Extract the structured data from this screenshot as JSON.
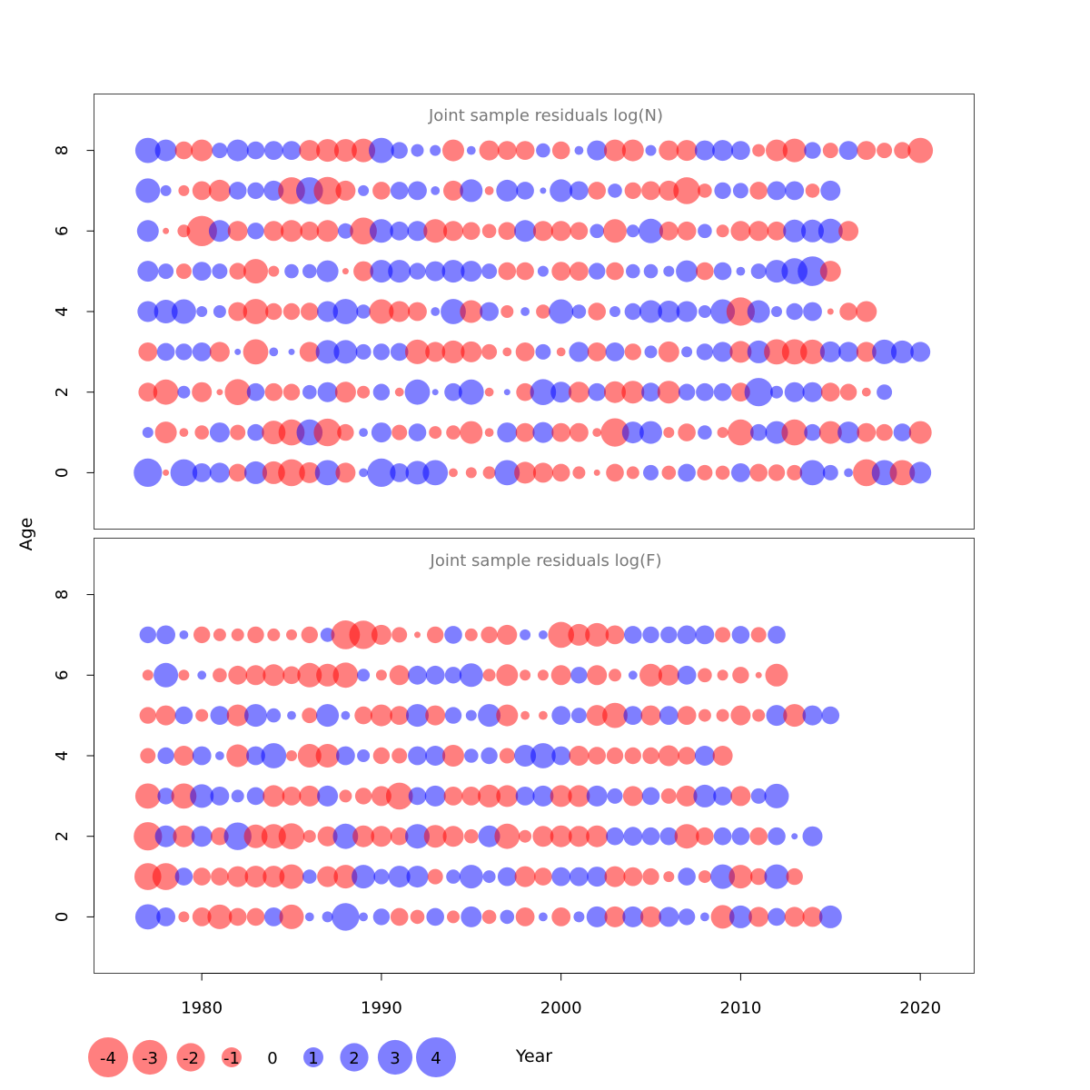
{
  "chart_data": {
    "type": "scatter",
    "style": "bubble residual plot",
    "xlabel": "Year",
    "ylabel": "Age",
    "xlim": [
      1974,
      2023
    ],
    "ylim": [
      -1.4,
      9.4
    ],
    "xticks": [
      1980,
      1990,
      2000,
      2010,
      2020
    ],
    "yticks": [
      0,
      2,
      4,
      6,
      8
    ],
    "years": [
      1977,
      1978,
      1979,
      1980,
      1981,
      1982,
      1983,
      1984,
      1985,
      1986,
      1987,
      1988,
      1989,
      1990,
      1991,
      1992,
      1993,
      1994,
      1995,
      1996,
      1997,
      1998,
      1999,
      2000,
      2001,
      2002,
      2003,
      2004,
      2005,
      2006,
      2007,
      2008,
      2009,
      2010,
      2011,
      2012,
      2013,
      2014,
      2015,
      2016,
      2017,
      2018,
      2019,
      2020
    ],
    "colors": {
      "negative": "#ff0000",
      "positive": "#0000ff"
    },
    "max_abs_residual": 4,
    "panels": [
      {
        "title": "Joint sample residuals log(N)",
        "ages": [
          0,
          1,
          2,
          3,
          4,
          5,
          6,
          7,
          8
        ],
        "residuals": [
          [
            2.0,
            -0.1,
            1.8,
            0.9,
            1.0,
            -0.8,
            1.3,
            -1.3,
            -1.8,
            -1.1,
            1.6,
            -1.0,
            0.2,
            2.0,
            0.9,
            1.4,
            1.6,
            -0.2,
            -0.3,
            -0.4,
            1.6,
            -1.2,
            -1.0,
            -0.8,
            -0.4,
            -0.1,
            -0.8,
            -0.4,
            0.6,
            -0.5,
            0.8,
            -0.6,
            -0.5,
            0.9,
            -0.8,
            -0.7,
            -0.6,
            1.6,
            0.6,
            0.2,
            -1.8,
            1.6,
            -1.6,
            1.2
          ],
          [
            0.3,
            -1.2,
            -0.2,
            -0.5,
            1.0,
            -0.6,
            0.7,
            -1.4,
            -1.7,
            1.7,
            -1.9,
            -0.7,
            0.2,
            1.0,
            -0.6,
            0.8,
            -0.4,
            -0.5,
            -1.3,
            -0.2,
            1.0,
            -0.9,
            1.1,
            -0.9,
            -0.9,
            -0.2,
            -2.0,
            1.2,
            1.3,
            -0.3,
            -0.8,
            0.5,
            -0.3,
            -1.7,
            0.7,
            1.3,
            -1.7,
            0.7,
            -1.3,
            1.2,
            -0.9,
            -0.7,
            0.8,
            -1.3
          ],
          [
            -0.9,
            -1.6,
            0.4,
            -1.0,
            -0.1,
            -1.7,
            0.8,
            -0.8,
            -0.7,
            0.5,
            1.0,
            -1.1,
            -0.4,
            0.7,
            -0.2,
            1.6,
            0.1,
            0.8,
            1.6,
            -0.2,
            0.1,
            -0.8,
            1.7,
            1.1,
            -1.1,
            0.8,
            -1.2,
            -1.3,
            0.9,
            -1.3,
            0.7,
            0.8,
            0.8,
            -0.9,
            2.0,
            0.4,
            1.0,
            1.0,
            -0.9,
            -0.7,
            -0.2,
            0.6
          ],
          [
            -0.9,
            0.8,
            0.7,
            0.9,
            -1.0,
            0.1,
            -1.6,
            0.2,
            0.1,
            -1.0,
            1.4,
            1.4,
            0.6,
            0.7,
            0.8,
            -1.5,
            -1.0,
            -1.3,
            -1.1,
            -0.6,
            -0.2,
            -0.9,
            0.6,
            -0.2,
            1.0,
            -0.9,
            0.9,
            -0.7,
            0.4,
            -1.1,
            0.3,
            0.7,
            1.0,
            -1.2,
            1.3,
            -1.6,
            -1.6,
            -1.5,
            1.1,
            1.0,
            -1.0,
            1.5,
            1.3,
            1.0,
            -0.2
          ],
          [
            1.1,
            1.4,
            1.5,
            0.3,
            0.4,
            -0.9,
            -1.6,
            -0.7,
            -0.7,
            -0.8,
            1.1,
            1.6,
            0.5,
            -1.5,
            -1.1,
            -0.9,
            0.2,
            1.6,
            -1.3,
            0.9,
            -0.4,
            0.2,
            -0.5,
            1.5,
            0.5,
            -0.8,
            0.3,
            0.7,
            1.3,
            1.2,
            1.1,
            0.4,
            1.5,
            -2.0,
            1.3,
            0.3,
            0.7,
            0.9,
            -0.1,
            -0.8,
            -1.1
          ],
          [
            1.1,
            0.6,
            -0.6,
            0.9,
            0.6,
            -0.7,
            -1.5,
            -0.3,
            0.5,
            0.5,
            1.2,
            -0.1,
            -1.0,
            1.3,
            1.3,
            0.7,
            1.0,
            1.3,
            1.1,
            0.6,
            -0.8,
            -0.8,
            0.3,
            -0.9,
            -0.9,
            0.7,
            -0.8,
            0.5,
            0.5,
            0.3,
            1.2,
            -0.8,
            0.8,
            0.2,
            0.6,
            1.3,
            1.7,
            2.2,
            -1.1
          ],
          [
            1.2,
            -0.1,
            -0.4,
            -2.3,
            1.2,
            -1.0,
            0.7,
            -1.0,
            -1.2,
            -0.9,
            -1.2,
            0.6,
            -1.8,
            1.4,
            0.9,
            1.0,
            -1.4,
            -1.0,
            -0.8,
            -0.5,
            -0.8,
            1.2,
            -1.0,
            -1.0,
            -0.8,
            0.5,
            -1.4,
            0.4,
            1.5,
            -0.9,
            -0.9,
            0.5,
            -0.4,
            -1.0,
            -1.0,
            -0.9,
            1.3,
            1.3,
            1.5,
            -1.0
          ],
          [
            1.5,
            0.3,
            -0.3,
            -0.9,
            -1.2,
            0.8,
            0.7,
            1.0,
            -1.8,
            1.8,
            -1.9,
            -1.0,
            0.3,
            -0.8,
            0.8,
            0.9,
            0.2,
            -1.0,
            1.3,
            -0.2,
            1.2,
            0.8,
            0.1,
            1.3,
            0.9,
            -0.8,
            0.5,
            -0.7,
            -0.9,
            -1.0,
            -1.8,
            -0.5,
            0.7,
            0.6,
            -0.8,
            0.9,
            0.9,
            -0.5,
            1.0
          ],
          [
            1.6,
            1.2,
            -0.8,
            -1.2,
            0.6,
            1.2,
            0.8,
            0.9,
            0.9,
            -1.1,
            -1.3,
            -1.3,
            -1.4,
            1.6,
            0.7,
            0.4,
            0.3,
            -1.2,
            0.2,
            -1.0,
            -0.9,
            -0.9,
            0.5,
            -0.8,
            0.2,
            1.0,
            -1.2,
            -1.2,
            0.3,
            -1.0,
            -1.1,
            1.0,
            1.1,
            0.9,
            -0.4,
            -1.2,
            -1.4,
            0.7,
            -0.6,
            0.9,
            -0.9,
            -0.6,
            -0.7,
            -1.6
          ]
        ]
      },
      {
        "title": "Joint sample residuals log(F)",
        "ages": [
          0,
          1,
          2,
          3,
          4,
          5,
          6,
          7
        ],
        "residuals": [
          [
            1.6,
            0.9,
            -0.3,
            -0.9,
            -1.5,
            -0.8,
            -0.8,
            0.9,
            -1.5,
            0.2,
            0.3,
            1.9,
            0.2,
            0.7,
            -0.8,
            -0.5,
            0.8,
            -0.4,
            1.1,
            -0.5,
            0.5,
            -0.9,
            0.2,
            -0.9,
            0.3,
            1.1,
            -1.1,
            1.1,
            -1.1,
            1.0,
            0.7,
            0.2,
            -1.4,
            1.3,
            -1.0,
            0.8,
            -1.0,
            -1.0,
            1.3
          ],
          [
            -1.8,
            -1.8,
            0.8,
            -0.8,
            -0.8,
            -1.1,
            -1.2,
            -1.2,
            -1.5,
            0.5,
            -1.1,
            -1.4,
            1.4,
            0.6,
            1.2,
            1.2,
            -0.6,
            0.5,
            1.4,
            0.4,
            0.9,
            -1.1,
            -0.8,
            0.9,
            0.9,
            1.0,
            -1.1,
            -0.9,
            -0.7,
            -0.3,
            0.8,
            -0.4,
            1.5,
            -1.4,
            -0.7,
            1.5,
            -0.7
          ],
          [
            -2.0,
            1.2,
            -1.2,
            1.1,
            -0.8,
            1.9,
            -1.4,
            -1.5,
            -1.7,
            -0.4,
            -1.0,
            1.6,
            -1.2,
            -1.1,
            -0.8,
            1.5,
            -1.3,
            -1.1,
            -0.5,
            1.2,
            -1.6,
            -0.4,
            -1.1,
            -1.2,
            -1.1,
            -1.2,
            0.8,
            0.9,
            0.8,
            0.8,
            -1.5,
            -0.8,
            0.8,
            0.8,
            -0.8,
            0.8,
            0.1,
            1.0
          ],
          [
            -1.6,
            0.7,
            -1.6,
            1.4,
            0.9,
            0.4,
            0.8,
            -1.2,
            -0.9,
            -1.1,
            1.1,
            -0.4,
            -0.7,
            -1.0,
            -1.8,
            0.8,
            1.1,
            -0.9,
            -0.9,
            -1.3,
            -1.2,
            0.9,
            1.1,
            -1.2,
            -1.2,
            1.1,
            0.6,
            -1.0,
            0.8,
            -0.6,
            -1.1,
            1.3,
            0.9,
            -1.0,
            0.6,
            1.5
          ],
          [
            -0.6,
            0.7,
            -1.0,
            0.9,
            0.2,
            -1.3,
            0.9,
            1.6,
            -0.3,
            -1.4,
            -1.4,
            0.9,
            0.4,
            -0.7,
            -0.6,
            0.9,
            1.0,
            -1.2,
            0.5,
            0.7,
            -0.6,
            1.2,
            1.6,
            0.9,
            -1.0,
            -0.8,
            -0.7,
            -0.7,
            -0.7,
            -1.1,
            -0.8,
            1.0,
            -1.0
          ],
          [
            -0.7,
            -1.0,
            0.8,
            -0.4,
            0.9,
            -1.2,
            1.3,
            0.5,
            0.2,
            -0.6,
            1.3,
            0.2,
            -0.8,
            -1.2,
            -0.9,
            1.3,
            -1.0,
            0.7,
            0.3,
            1.3,
            -1.2,
            -0.2,
            -0.2,
            0.9,
            0.6,
            -1.1,
            -1.6,
            0.9,
            -1.0,
            0.9,
            -0.9,
            -0.4,
            -0.4,
            -1.0,
            -0.4,
            1.1,
            -1.3,
            1.0,
            0.8
          ],
          [
            -0.3,
            1.5,
            -0.3,
            0.2,
            -0.5,
            -0.9,
            -1.0,
            -1.2,
            -0.8,
            -1.5,
            -1.3,
            -1.6,
            0.4,
            -0.3,
            -1.0,
            0.9,
            0.9,
            0.7,
            1.4,
            -0.4,
            -1.2,
            -0.3,
            -0.3,
            -1.0,
            0.7,
            -1.0,
            -0.4,
            0.2,
            -1.3,
            -1.1,
            0.9,
            -0.5,
            -0.3,
            -0.7,
            -0.1,
            -1.3
          ],
          [
            0.7,
            0.9,
            0.2,
            -0.7,
            -0.4,
            -0.4,
            -0.7,
            -0.4,
            -0.3,
            -0.7,
            0.5,
            -2.1,
            -2.0,
            -1.0,
            -0.6,
            -0.1,
            -0.7,
            0.8,
            -0.4,
            -0.7,
            -1.0,
            0.3,
            0.2,
            -1.7,
            -1.2,
            -1.4,
            -0.9,
            0.8,
            0.7,
            0.7,
            0.9,
            0.9,
            -0.6,
            0.8,
            -0.6,
            0.8
          ]
        ]
      }
    ],
    "legend": {
      "values": [
        "-4",
        "-3",
        "-2",
        "-1",
        "0",
        "1",
        "2",
        "3",
        "4"
      ]
    }
  }
}
